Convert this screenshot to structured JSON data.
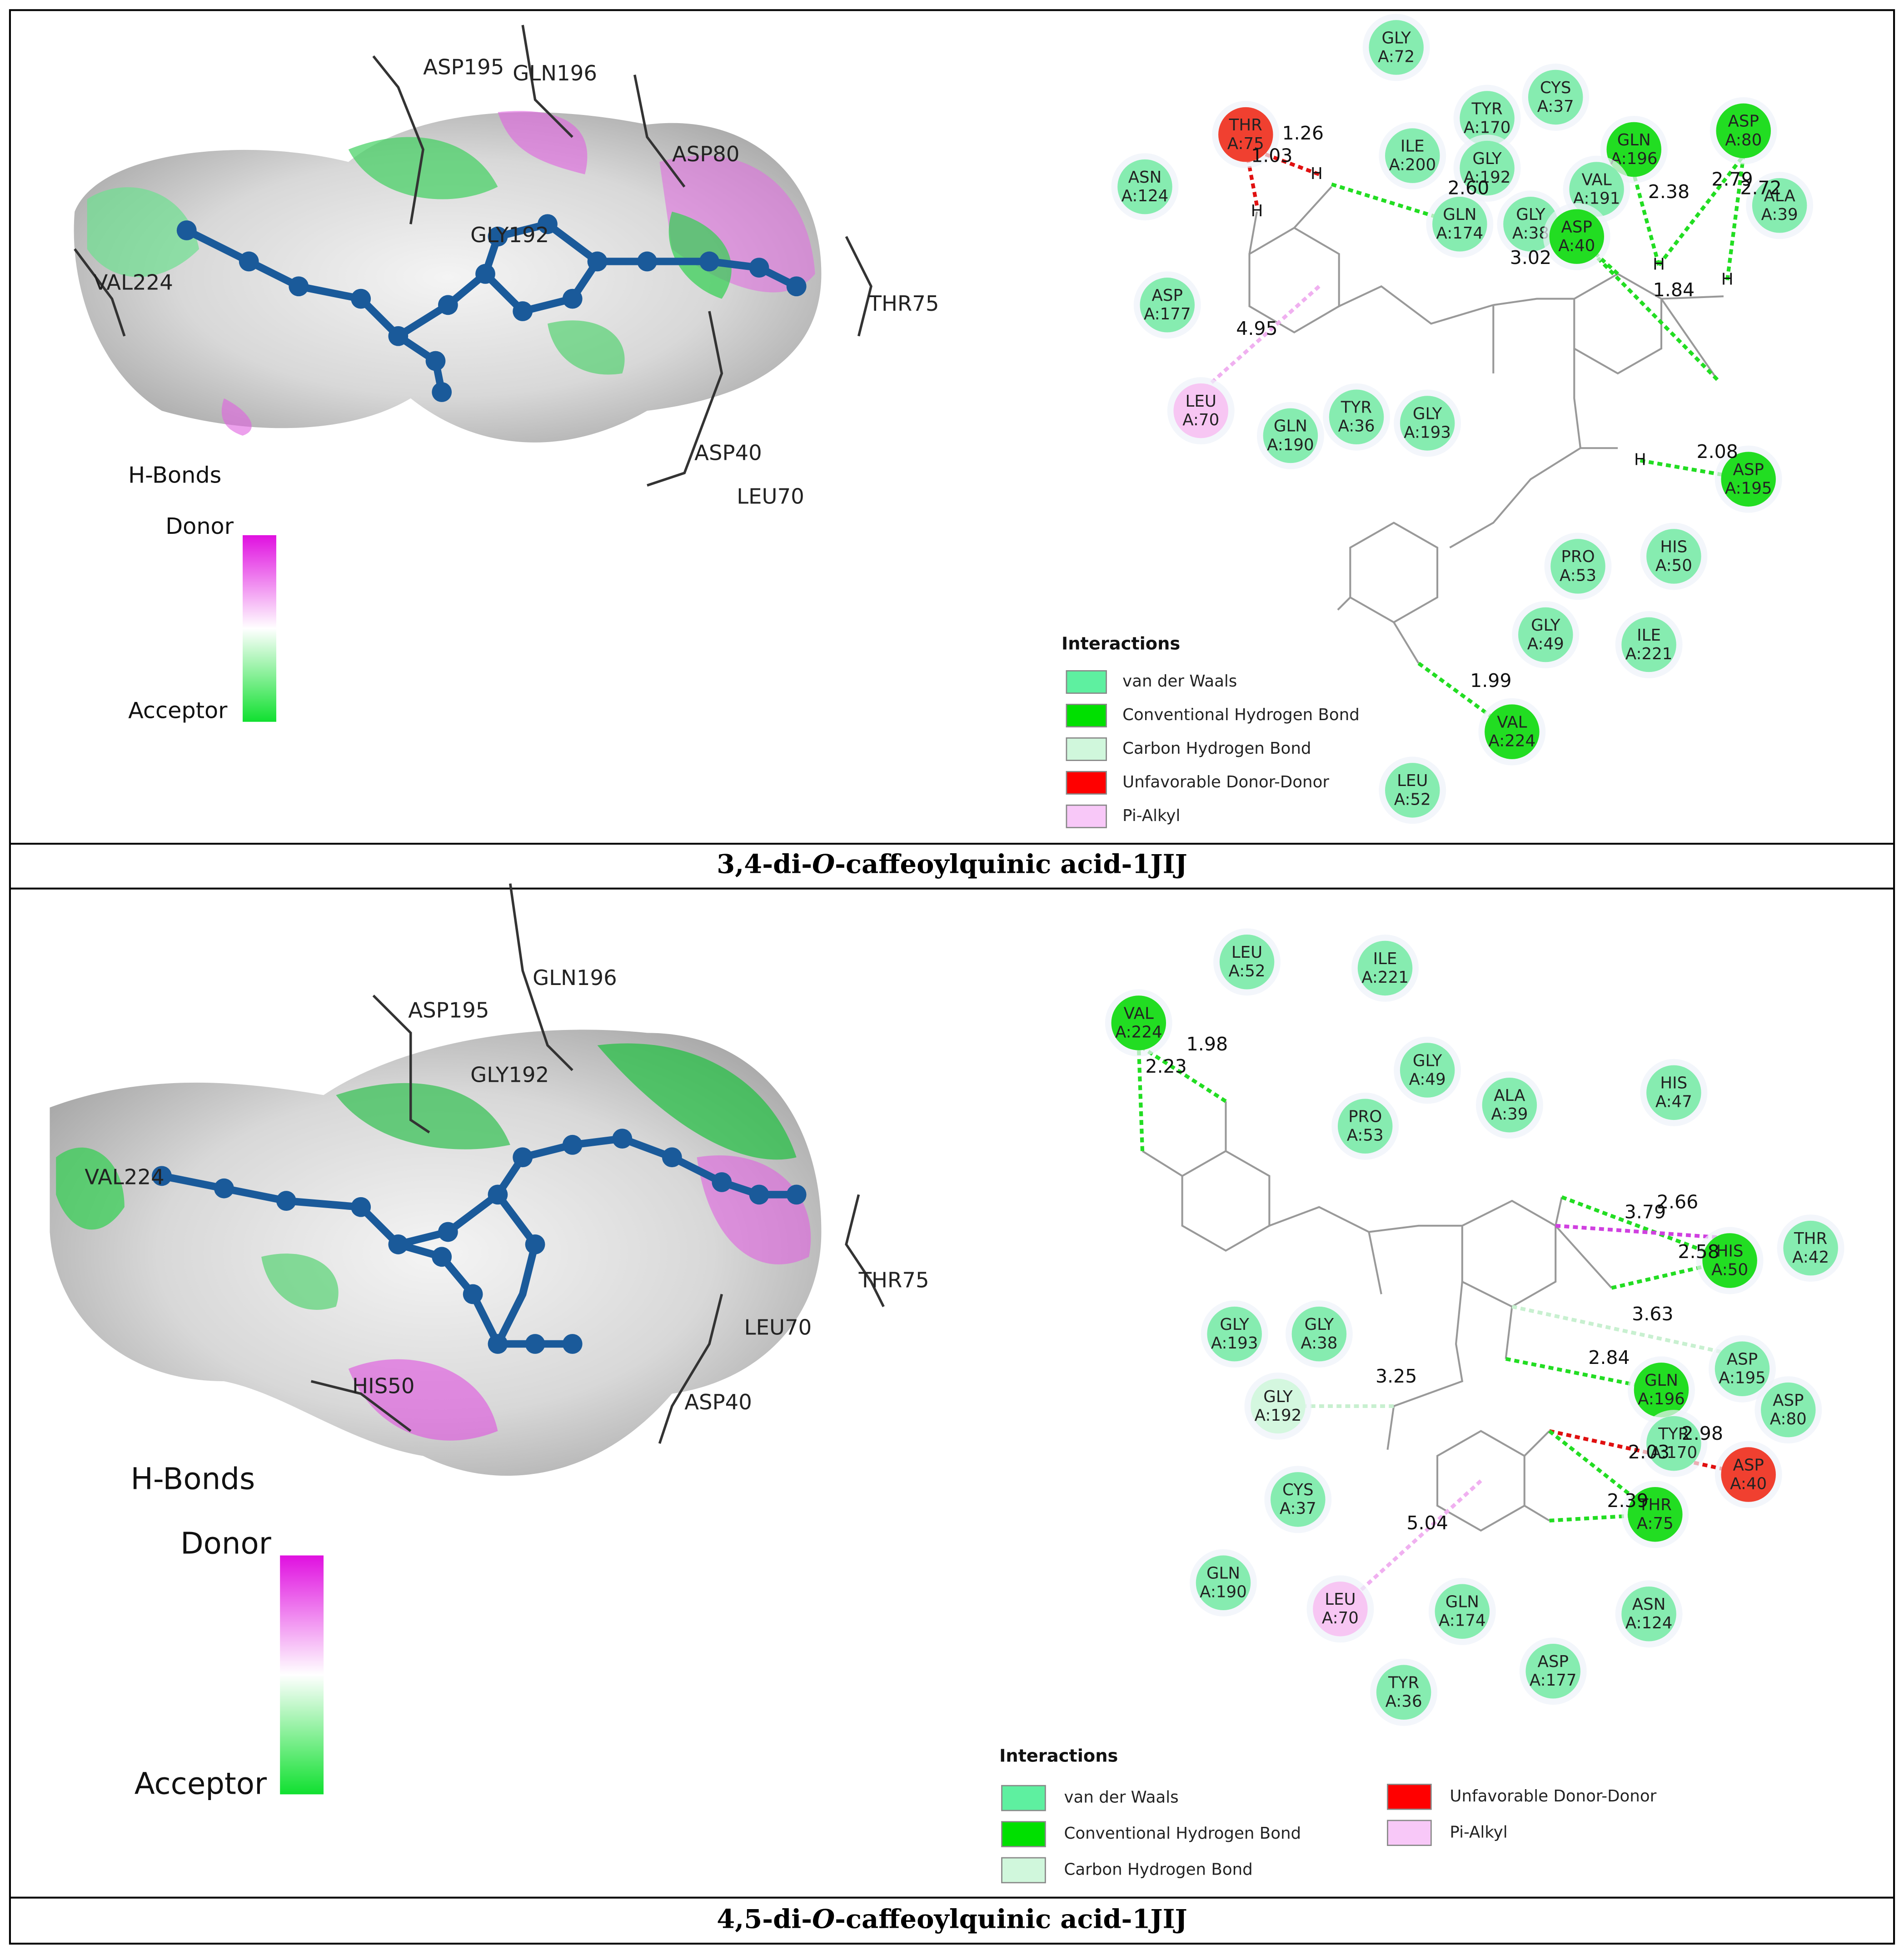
{
  "panels": [
    {
      "caption": {
        "before": "3,4-di-",
        "italic": "O",
        "after": "-caffeoylquinic acid-1JIJ"
      },
      "surface": {
        "residue_labels": [
          "ASP195",
          "GLN196",
          "ASP80",
          "GLY192",
          "VAL224",
          "THR75",
          "ASP40",
          "LEU70"
        ],
        "legend": {
          "title": "H-Bonds",
          "top": "Donor",
          "bottom": "Acceptor"
        }
      },
      "diagram": {
        "residues": [
          {
            "name": "GLY",
            "id": "A:72",
            "color": "#86ecb0"
          },
          {
            "name": "THR",
            "id": "A:75",
            "color": "#f04030"
          },
          {
            "name": "ASN",
            "id": "A:124",
            "color": "#86ecb0"
          },
          {
            "name": "TYR",
            "id": "A:170",
            "color": "#86ecb0"
          },
          {
            "name": "CYS",
            "id": "A:37",
            "color": "#86ecb0"
          },
          {
            "name": "GLN",
            "id": "A:196",
            "color": "#22dd22"
          },
          {
            "name": "ASP",
            "id": "A:80",
            "color": "#22dd22"
          },
          {
            "name": "ILE",
            "id": "A:200",
            "color": "#86ecb0"
          },
          {
            "name": "GLY",
            "id": "A:192",
            "color": "#86ecb0"
          },
          {
            "name": "VAL",
            "id": "A:191",
            "color": "#86ecb0"
          },
          {
            "name": "ALA",
            "id": "A:39",
            "color": "#86ecb0"
          },
          {
            "name": "GLN",
            "id": "A:174",
            "color": "#86ecb0"
          },
          {
            "name": "GLY",
            "id": "A:38",
            "color": "#86ecb0"
          },
          {
            "name": "ASP",
            "id": "A:40",
            "color": "#22dd22"
          },
          {
            "name": "ASP",
            "id": "A:177",
            "color": "#86ecb0"
          },
          {
            "name": "LEU",
            "id": "A:70",
            "color": "#f7c6f3"
          },
          {
            "name": "GLN",
            "id": "A:190",
            "color": "#86ecb0"
          },
          {
            "name": "TYR",
            "id": "A:36",
            "color": "#86ecb0"
          },
          {
            "name": "GLY",
            "id": "A:193",
            "color": "#86ecb0"
          },
          {
            "name": "ASP",
            "id": "A:195",
            "color": "#22dd22"
          },
          {
            "name": "PRO",
            "id": "A:53",
            "color": "#86ecb0"
          },
          {
            "name": "HIS",
            "id": "A:50",
            "color": "#86ecb0"
          },
          {
            "name": "GLY",
            "id": "A:49",
            "color": "#86ecb0"
          },
          {
            "name": "ILE",
            "id": "A:221",
            "color": "#86ecb0"
          },
          {
            "name": "VAL",
            "id": "A:224",
            "color": "#22dd22"
          },
          {
            "name": "LEU",
            "id": "A:52",
            "color": "#86ecb0"
          }
        ],
        "distances": [
          "1.26",
          "1.03",
          "2.60",
          "3.02",
          "2.38",
          "2.79",
          "2.72",
          "1.84",
          "4.95",
          "2.08",
          "1.99"
        ],
        "atom_labels": [
          "H",
          "H",
          "H",
          "H",
          "H"
        ],
        "legend": {
          "title": "Interactions",
          "items": [
            {
              "label": "van der Waals",
              "color": "#5ef0a0"
            },
            {
              "label": "Conventional Hydrogen Bond",
              "color": "#00e000"
            },
            {
              "label": "Carbon Hydrogen Bond",
              "color": "#d0f7dc"
            },
            {
              "label": "Unfavorable Donor-Donor",
              "color": "#ff0000"
            },
            {
              "label": "Pi-Alkyl",
              "color": "#f8c8f8"
            }
          ]
        }
      }
    },
    {
      "caption": {
        "before": "4,5-di-",
        "italic": "O",
        "after": "-caffeoylquinic acid-1JIJ"
      },
      "surface": {
        "residue_labels": [
          "GLN196",
          "ASP195",
          "GLY192",
          "VAL224",
          "THR75",
          "LEU70",
          "HIS50",
          "ASP40"
        ],
        "legend": {
          "title": "H-Bonds",
          "top": "Donor",
          "bottom": "Acceptor"
        }
      },
      "diagram": {
        "residues": [
          {
            "name": "LEU",
            "id": "A:52",
            "color": "#86ecb0"
          },
          {
            "name": "ILE",
            "id": "A:221",
            "color": "#86ecb0"
          },
          {
            "name": "VAL",
            "id": "A:224",
            "color": "#22dd22"
          },
          {
            "name": "GLY",
            "id": "A:49",
            "color": "#86ecb0"
          },
          {
            "name": "HIS",
            "id": "A:47",
            "color": "#86ecb0"
          },
          {
            "name": "PRO",
            "id": "A:53",
            "color": "#86ecb0"
          },
          {
            "name": "ALA",
            "id": "A:39",
            "color": "#86ecb0"
          },
          {
            "name": "HIS",
            "id": "A:50",
            "color": "#22dd22"
          },
          {
            "name": "THR",
            "id": "A:42",
            "color": "#86ecb0"
          },
          {
            "name": "GLY",
            "id": "A:193",
            "color": "#86ecb0"
          },
          {
            "name": "GLY",
            "id": "A:38",
            "color": "#86ecb0"
          },
          {
            "name": "ASP",
            "id": "A:195",
            "color": "#86ecb0"
          },
          {
            "name": "GLN",
            "id": "A:196",
            "color": "#22dd22"
          },
          {
            "name": "ASP",
            "id": "A:80",
            "color": "#86ecb0"
          },
          {
            "name": "GLY",
            "id": "A:192",
            "color": "#d4f7df"
          },
          {
            "name": "TYR",
            "id": "A:170",
            "color": "#86ecb0"
          },
          {
            "name": "ASP",
            "id": "A:40",
            "color": "#f04030"
          },
          {
            "name": "THR",
            "id": "A:75",
            "color": "#22dd22"
          },
          {
            "name": "CYS",
            "id": "A:37",
            "color": "#86ecb0"
          },
          {
            "name": "GLN",
            "id": "A:190",
            "color": "#86ecb0"
          },
          {
            "name": "LEU",
            "id": "A:70",
            "color": "#f7c6f3"
          },
          {
            "name": "GLN",
            "id": "A:174",
            "color": "#86ecb0"
          },
          {
            "name": "ASN",
            "id": "A:124",
            "color": "#86ecb0"
          },
          {
            "name": "ASP",
            "id": "A:177",
            "color": "#86ecb0"
          },
          {
            "name": "TYR",
            "id": "A:36",
            "color": "#86ecb0"
          }
        ],
        "distances": [
          "1.98",
          "2.23",
          "2.66",
          "3.79",
          "2.58",
          "3.63",
          "2.84",
          "3.25",
          "2.98",
          "2.03",
          "2.39",
          "5.04"
        ],
        "legend": {
          "title": "Interactions",
          "items": [
            {
              "label": "van der Waals",
              "color": "#5ef0a0"
            },
            {
              "label": "Conventional Hydrogen Bond",
              "color": "#00e000"
            },
            {
              "label": "Carbon Hydrogen Bond",
              "color": "#d0f7dc"
            },
            {
              "label": "Unfavorable Donor-Donor",
              "color": "#ff0000"
            },
            {
              "label": "Pi-Alkyl",
              "color": "#f8c8f8"
            }
          ]
        }
      }
    }
  ]
}
